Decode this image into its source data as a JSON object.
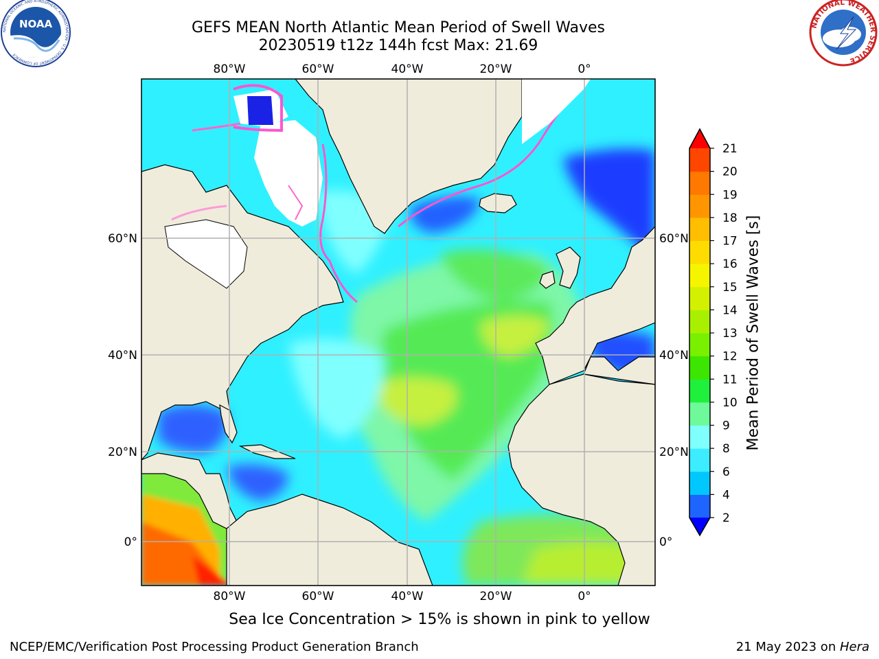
{
  "header": {
    "title_line1": "GEFS MEAN North Atlantic Mean Period of Swell Waves",
    "title_line2": "20230519 t12z 144h fcst   Max: 21.69"
  },
  "logos": {
    "left": "NOAA",
    "left_ring_text": "NATIONAL OCEANIC AND ATMOSPHERIC ADMINISTRATION · U.S. DEPARTMENT OF COMMERCE",
    "right_ring_text": "NATIONAL WEATHER SERVICE"
  },
  "map": {
    "lon_labels_top": [
      "80°W",
      "60°W",
      "40°W",
      "20°W",
      "0°"
    ],
    "lon_labels_bottom": [
      "80°W",
      "60°W",
      "40°W",
      "20°W",
      "0°"
    ],
    "lat_labels_left": [
      "60°N",
      "40°N",
      "20°N",
      "0°"
    ],
    "lat_labels_right": [
      "60°N",
      "40°N",
      "20°N",
      "0°"
    ],
    "colors": {
      "land": "#efecdc",
      "ice": "#ffffff",
      "grid": "#b0b0b0"
    }
  },
  "colorbar": {
    "label": "Mean Period of Swell Waves [s]",
    "ticks": [
      "2",
      "4",
      "6",
      "8",
      "9",
      "10",
      "11",
      "12",
      "13",
      "14",
      "15",
      "16",
      "17",
      "18",
      "19",
      "20",
      "21"
    ],
    "colors": [
      "#1e64ff",
      "#00c8ff",
      "#3cecff",
      "#80ffff",
      "#6efa9a",
      "#1ef03c",
      "#3ce600",
      "#78f000",
      "#a8f000",
      "#d2f000",
      "#f5f500",
      "#ffdc00",
      "#ffbe00",
      "#ff9600",
      "#ff7800",
      "#ff4600"
    ],
    "under_color": "#0000ff",
    "over_color": "#ff0000"
  },
  "notes": {
    "ice": "Sea Ice Concentration > 15% is shown in pink to yellow"
  },
  "footer": {
    "left": "NCEP/EMC/Verification Post Processing Product Generation Branch",
    "right_date": "21 May 2023 on ",
    "right_host": "Hera"
  }
}
